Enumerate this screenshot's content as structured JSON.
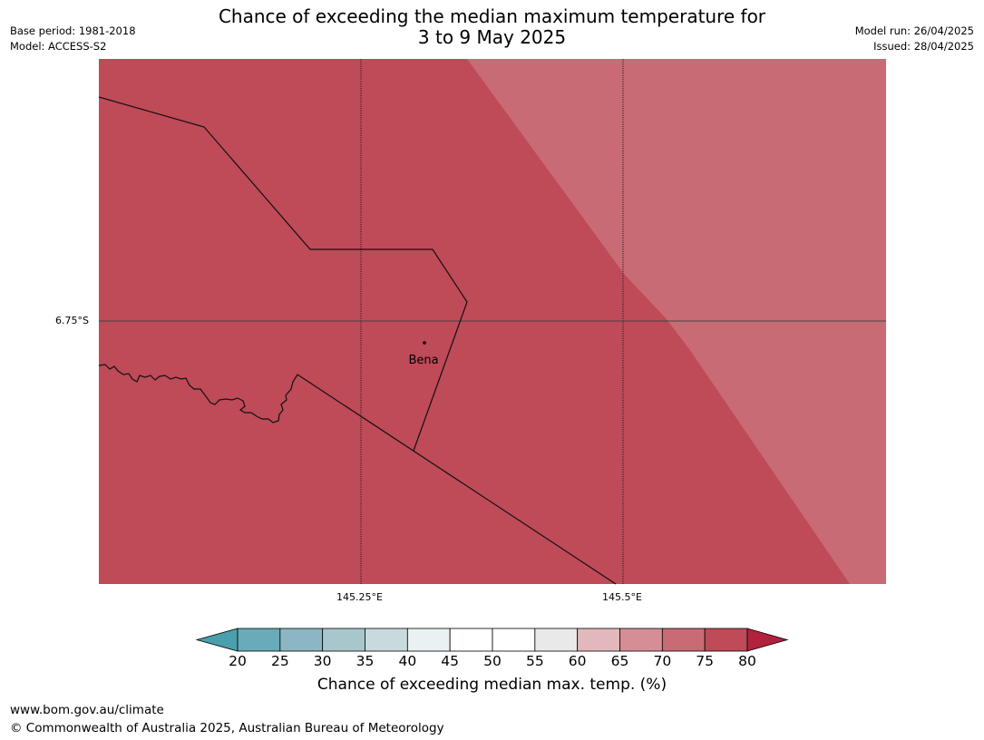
{
  "title": {
    "line1": "Chance of exceeding the median maximum temperature for",
    "line2": "3 to 9 May 2025"
  },
  "header_left": {
    "base_period": "Base period: 1981-2018",
    "model": "Model: ACCESS-S2"
  },
  "header_right": {
    "model_run": "Model run: 26/04/2025",
    "issued": "Issued: 28/04/2025"
  },
  "map": {
    "place_label": "Bena",
    "lat_labels": [
      "6.75°S"
    ],
    "lon_labels": [
      "145.25°E",
      "145.5°E"
    ],
    "regions": [
      {
        "category": "75-80",
        "color": "#bf4a58"
      },
      {
        "category": "70-75",
        "color": "#c96b75"
      }
    ]
  },
  "colorbar": {
    "title": "Chance of exceeding median max. temp. (%)",
    "ticks": [
      "20",
      "25",
      "30",
      "35",
      "40",
      "45",
      "50",
      "55",
      "60",
      "65",
      "70",
      "75",
      "80"
    ],
    "under_color": "#4a9fae",
    "over_color": "#b2223d",
    "bin_colors": [
      "#6aabb9",
      "#8bb7c3",
      "#a8c7cd",
      "#c9dade",
      "#eaf1f3",
      "#ffffff",
      "#ffffff",
      "#e9e9e9",
      "#e3b8bd",
      "#d68e96",
      "#c96b75",
      "#bf4a58"
    ]
  },
  "footer": {
    "url": "www.bom.gov.au/climate",
    "copyright": "© Commonwealth of Australia 2025, Australian Bureau of Meteorology"
  }
}
